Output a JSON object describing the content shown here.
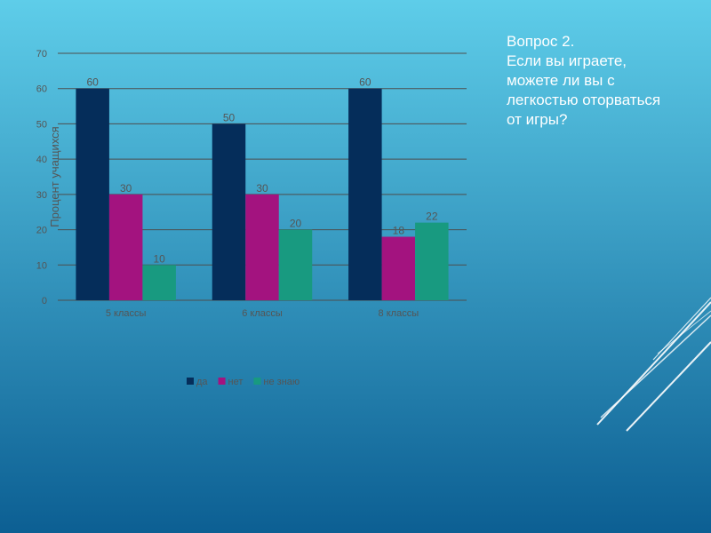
{
  "slide": {
    "background_top": "#5ecde9",
    "background_bottom": "#0c5f93"
  },
  "question": {
    "lines": [
      "Вопрос 2.",
      "Если вы играете,",
      "можете ли вы с",
      "легкостью оторваться",
      "от игры?"
    ]
  },
  "chart_data": {
    "type": "bar",
    "categories": [
      "5  классы",
      "6 классы",
      "8 классы"
    ],
    "series": [
      {
        "name": "да",
        "values": [
          60,
          50,
          60
        ],
        "color": "#052d5a"
      },
      {
        "name": "нет",
        "values": [
          30,
          30,
          18
        ],
        "color": "#a3137f"
      },
      {
        "name": "не знаю",
        "values": [
          10,
          20,
          22
        ],
        "color": "#189a80"
      }
    ],
    "ylabel": "Процент учащихся",
    "xlabel": "",
    "ylim": [
      0,
      70
    ],
    "yticks": [
      0,
      10,
      20,
      30,
      40,
      50,
      60,
      70
    ],
    "grid": true,
    "legend": "bottom",
    "data_labels": true,
    "text_color": "#555555",
    "grid_color": "#4d4d4d"
  }
}
